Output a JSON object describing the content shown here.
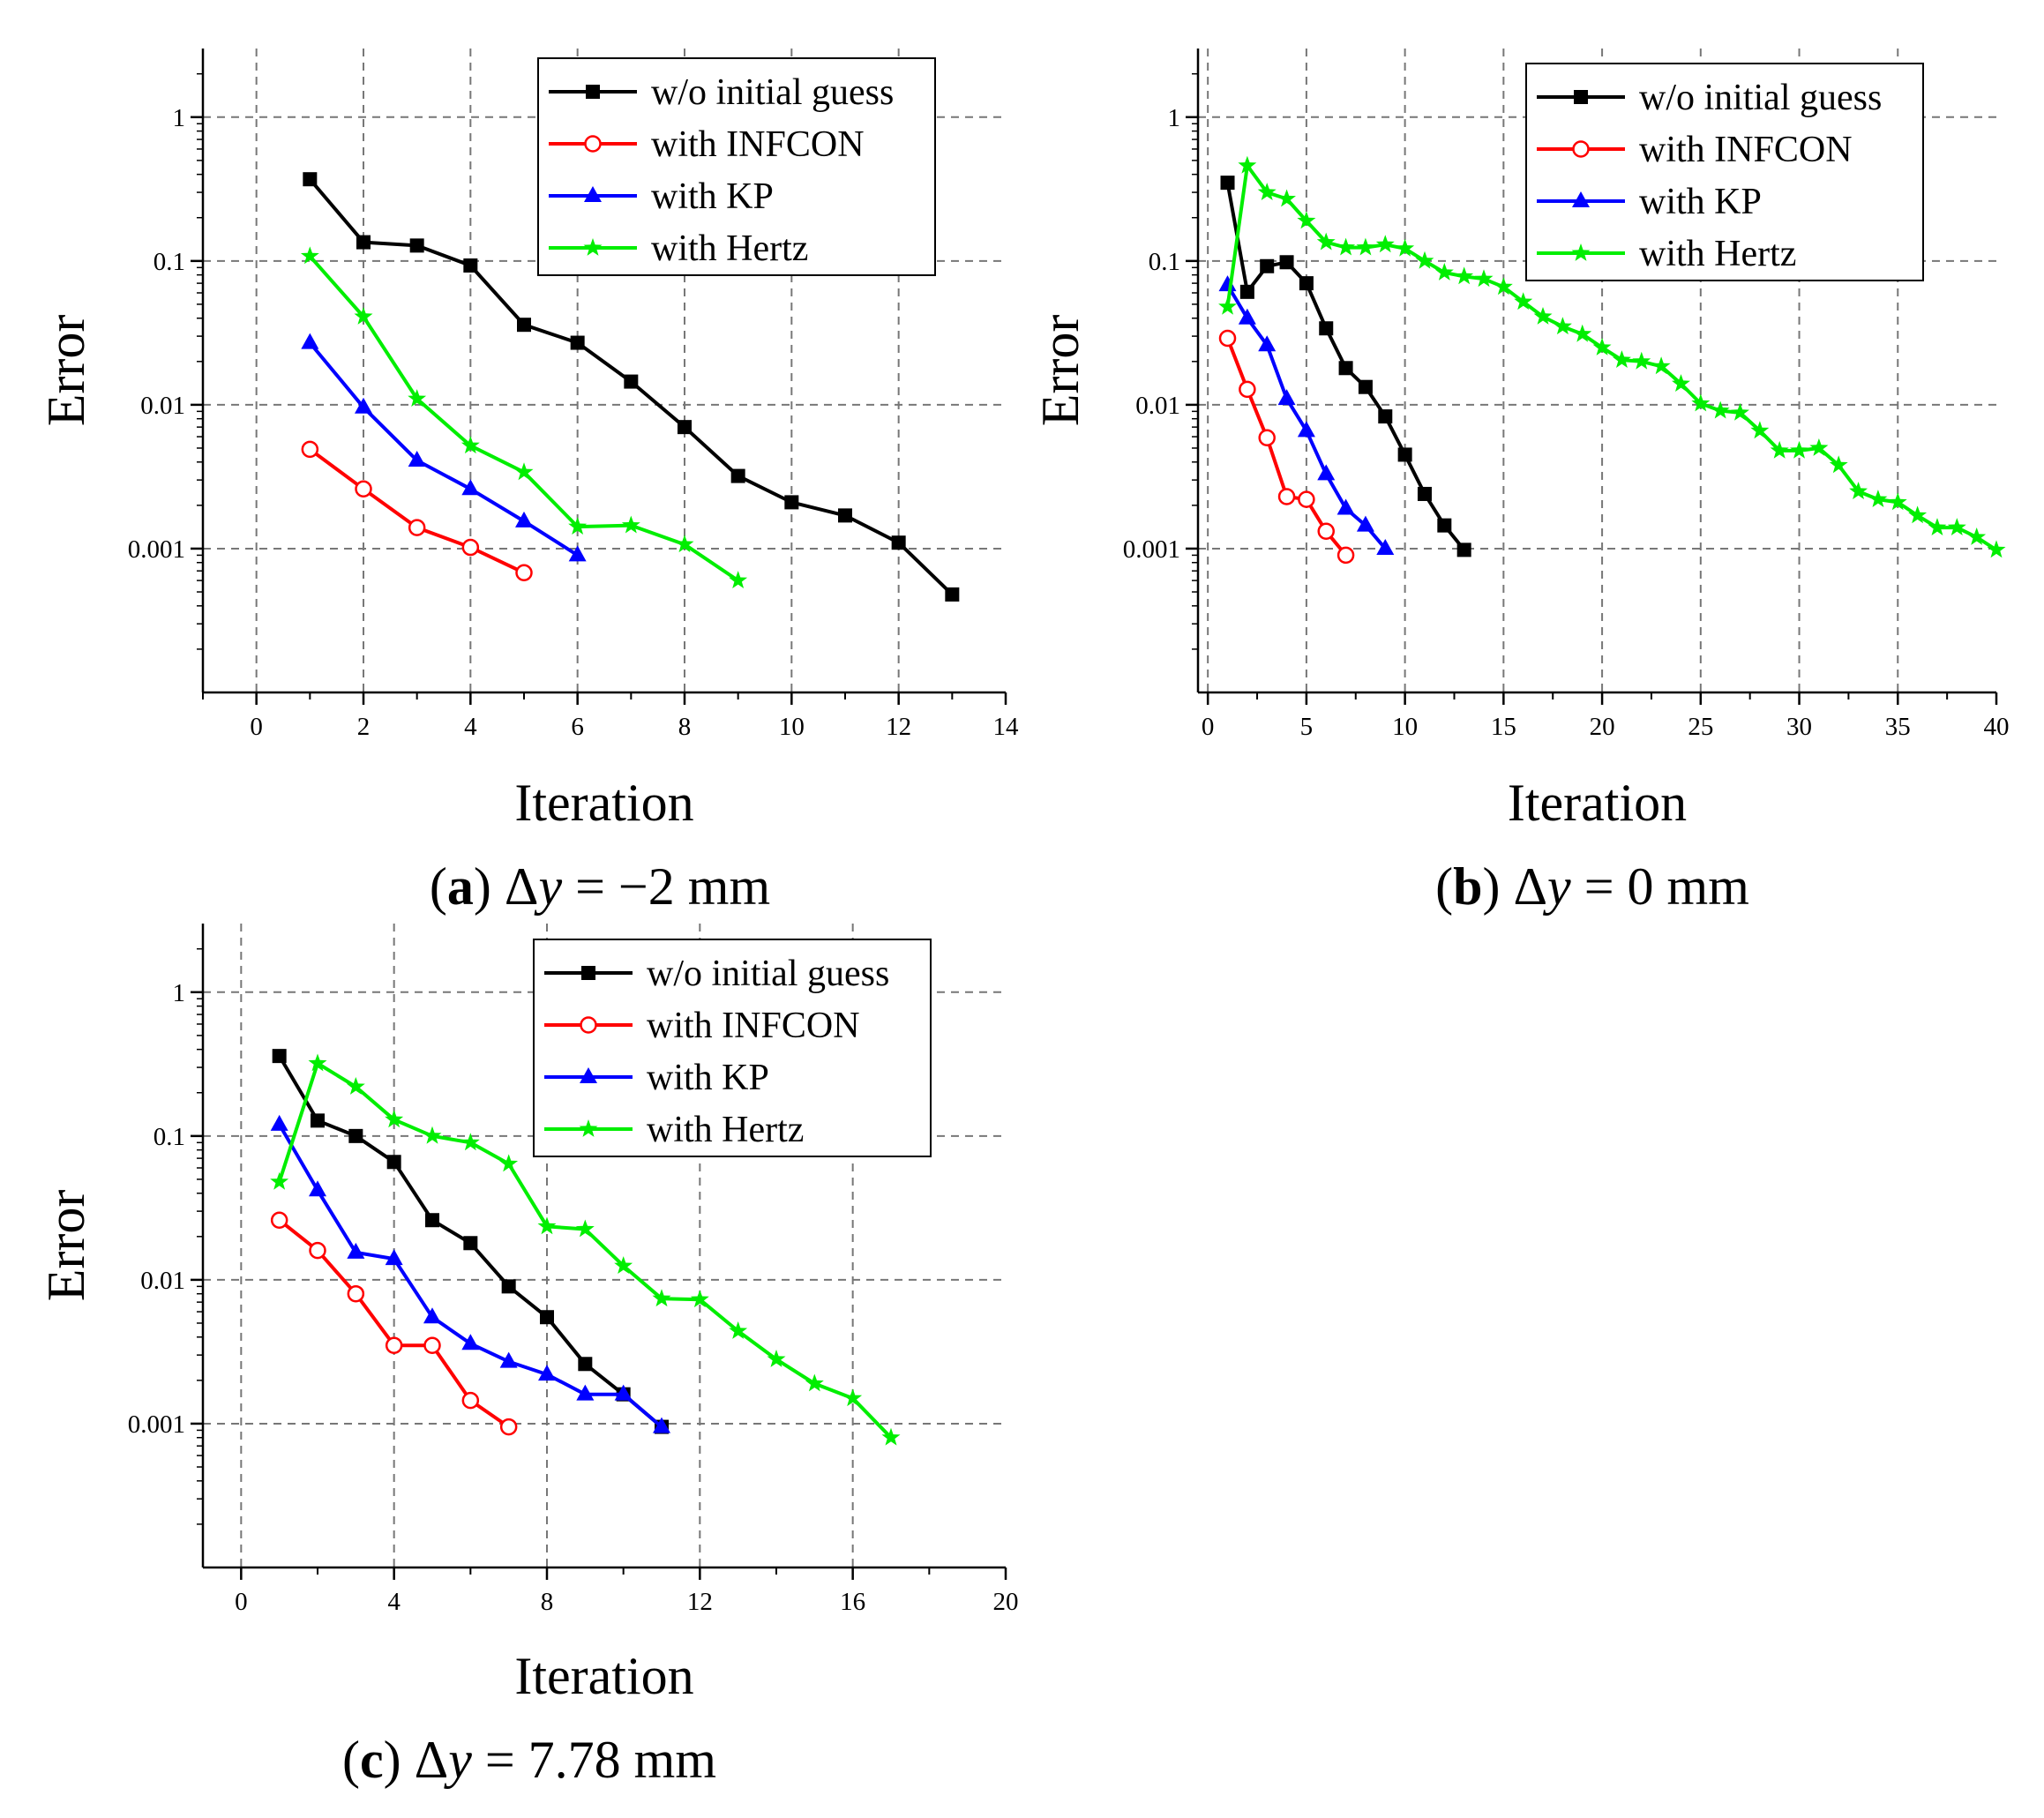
{
  "figure": {
    "panels_note": "three error-vs-iteration convergence plots"
  },
  "chart_data": [
    {
      "id": "a",
      "type": "line",
      "caption": {
        "label": "a",
        "delta": "Δ",
        "var": "y",
        "value": " = −2 mm"
      },
      "xlabel": "Iteration",
      "ylabel": "Error",
      "yscale": "log",
      "xlim": [
        -1,
        14
      ],
      "ylim": [
        0.0001,
        3
      ],
      "xticks": [
        0,
        2,
        4,
        6,
        8,
        10,
        12,
        14
      ],
      "yticks": [
        0.001,
        0.01,
        0.1,
        1
      ],
      "ytick_labels": [
        "0.001",
        "0.01",
        "0.1",
        "1"
      ],
      "grid": true,
      "legend_position": "top-right",
      "series": [
        {
          "name": "w/o initial guess",
          "color": "#000000",
          "marker": "square",
          "x": [
            1,
            2,
            3,
            4,
            5,
            6,
            7,
            8,
            9,
            10,
            11,
            12,
            13
          ],
          "y": [
            0.37,
            0.135,
            0.128,
            0.093,
            0.036,
            0.027,
            0.0145,
            0.007,
            0.0032,
            0.0021,
            0.0017,
            0.0011,
            0.00048
          ]
        },
        {
          "name": "with INFCON",
          "color": "#ff0000",
          "marker": "circle",
          "x": [
            1,
            2,
            3,
            4,
            5
          ],
          "y": [
            0.0049,
            0.0026,
            0.0014,
            0.00102,
            0.00068
          ]
        },
        {
          "name": "with KP",
          "color": "#0000ff",
          "marker": "triangle",
          "x": [
            1,
            2,
            3,
            4,
            5,
            6
          ],
          "y": [
            0.027,
            0.0096,
            0.0041,
            0.0026,
            0.00155,
            0.0009
          ]
        },
        {
          "name": "with Hertz",
          "color": "#00ee00",
          "marker": "star",
          "x": [
            1,
            2,
            3,
            4,
            5,
            6,
            7,
            8,
            9
          ],
          "y": [
            0.108,
            0.041,
            0.011,
            0.0052,
            0.0034,
            0.00142,
            0.00145,
            0.00107,
            0.0006
          ]
        }
      ]
    },
    {
      "id": "b",
      "type": "line",
      "caption": {
        "label": "b",
        "delta": "Δ",
        "var": "y",
        "value": " = 0 mm"
      },
      "xlabel": "Iteration",
      "ylabel": "Error",
      "yscale": "log",
      "xlim": [
        -0.5,
        40
      ],
      "ylim": [
        0.0001,
        3
      ],
      "xticks": [
        0,
        5,
        10,
        15,
        20,
        25,
        30,
        35,
        40
      ],
      "yticks": [
        0.001,
        0.01,
        0.1,
        1
      ],
      "ytick_labels": [
        "0.001",
        "0.01",
        "0.1",
        "1"
      ],
      "grid": true,
      "legend_position": "top-right",
      "series": [
        {
          "name": "w/o initial guess",
          "color": "#000000",
          "marker": "square",
          "x": [
            1,
            2,
            3,
            4,
            5,
            6,
            7,
            8,
            9,
            10,
            11,
            12,
            13
          ],
          "y": [
            0.35,
            0.061,
            0.092,
            0.098,
            0.07,
            0.034,
            0.018,
            0.0133,
            0.0083,
            0.0045,
            0.0024,
            0.00145,
            0.00098
          ]
        },
        {
          "name": "with INFCON",
          "color": "#ff0000",
          "marker": "circle",
          "x": [
            1,
            2,
            3,
            4,
            5,
            6,
            7
          ],
          "y": [
            0.029,
            0.0128,
            0.0059,
            0.0023,
            0.0022,
            0.00132,
            0.0009
          ]
        },
        {
          "name": "with KP",
          "color": "#0000ff",
          "marker": "triangle",
          "x": [
            1,
            2,
            3,
            4,
            5,
            6,
            7,
            8,
            9
          ],
          "y": [
            0.068,
            0.04,
            0.026,
            0.011,
            0.0066,
            0.0033,
            0.0019,
            0.00145,
            0.001
          ]
        },
        {
          "name": "with Hertz",
          "color": "#00ee00",
          "marker": "star",
          "x": [
            1,
            2,
            3,
            4,
            5,
            6,
            7,
            8,
            9,
            10,
            11,
            12,
            13,
            14,
            15,
            16,
            17,
            18,
            19,
            20,
            21,
            22,
            23,
            24,
            25,
            26,
            27,
            28,
            29,
            30,
            31,
            32,
            33,
            34,
            35,
            36,
            37,
            38,
            39,
            40
          ],
          "y": [
            0.048,
            0.46,
            0.3,
            0.27,
            0.19,
            0.135,
            0.124,
            0.124,
            0.13,
            0.122,
            0.1,
            0.083,
            0.078,
            0.075,
            0.066,
            0.052,
            0.041,
            0.035,
            0.031,
            0.025,
            0.0205,
            0.02,
            0.0185,
            0.014,
            0.0102,
            0.0091,
            0.0088,
            0.0066,
            0.0048,
            0.0048,
            0.005,
            0.0038,
            0.0025,
            0.0022,
            0.0021,
            0.0017,
            0.0014,
            0.0014,
            0.0012,
            0.00098
          ]
        }
      ]
    },
    {
      "id": "c",
      "type": "line",
      "caption": {
        "label": "c",
        "delta": "Δ",
        "var": "y",
        "value": " = 7.78 mm"
      },
      "xlabel": "Iteration",
      "ylabel": "Error",
      "yscale": "log",
      "xlim": [
        -1,
        20
      ],
      "ylim": [
        0.0001,
        3
      ],
      "xticks": [
        0,
        4,
        8,
        12,
        16,
        20
      ],
      "yticks": [
        0.001,
        0.01,
        0.1,
        1
      ],
      "ytick_labels": [
        "0.001",
        "0.01",
        "0.1",
        "1"
      ],
      "grid": true,
      "legend_position": "top-right",
      "series": [
        {
          "name": "w/o initial guess",
          "color": "#000000",
          "marker": "square",
          "x": [
            1,
            2,
            3,
            4,
            5,
            6,
            7,
            8,
            9,
            10,
            11
          ],
          "y": [
            0.36,
            0.128,
            0.1,
            0.066,
            0.026,
            0.018,
            0.009,
            0.0055,
            0.0026,
            0.0016,
            0.00095
          ]
        },
        {
          "name": "with INFCON",
          "color": "#ff0000",
          "marker": "circle",
          "x": [
            1,
            2,
            3,
            4,
            5,
            6,
            7
          ],
          "y": [
            0.026,
            0.016,
            0.008,
            0.0035,
            0.0035,
            0.00145,
            0.00095
          ]
        },
        {
          "name": "with KP",
          "color": "#0000ff",
          "marker": "triangle",
          "x": [
            1,
            2,
            3,
            4,
            5,
            6,
            7,
            8,
            9,
            10,
            11
          ],
          "y": [
            0.12,
            0.042,
            0.0155,
            0.014,
            0.0055,
            0.0036,
            0.0027,
            0.0022,
            0.0016,
            0.0016,
            0.00095
          ]
        },
        {
          "name": "with Hertz",
          "color": "#00ee00",
          "marker": "star",
          "x": [
            1,
            2,
            3,
            4,
            5,
            6,
            7,
            8,
            9,
            10,
            11,
            12,
            13,
            14,
            15,
            16,
            17
          ],
          "y": [
            0.048,
            0.32,
            0.22,
            0.13,
            0.1,
            0.09,
            0.064,
            0.0235,
            0.0225,
            0.0125,
            0.0074,
            0.0073,
            0.0044,
            0.0028,
            0.0019,
            0.0015,
            0.0008
          ]
        }
      ]
    }
  ]
}
